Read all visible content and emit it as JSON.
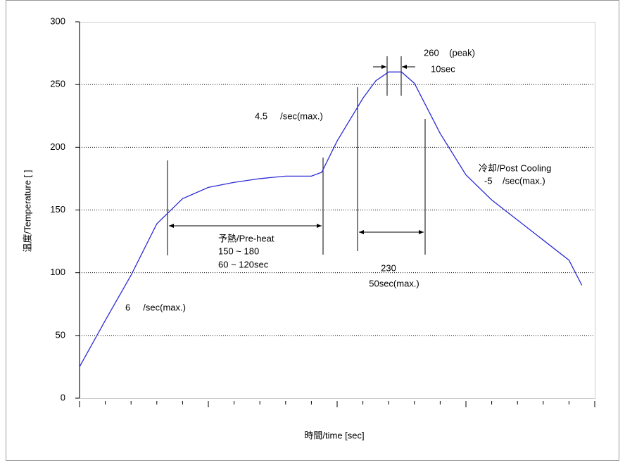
{
  "chart_data": {
    "type": "line",
    "y_label": "温度/Temperature [   ]",
    "x_label": "時間/time [sec]",
    "x": [
      0,
      1,
      2,
      3,
      4,
      5,
      6,
      7,
      8,
      9,
      9.4,
      10,
      11,
      11.5,
      12,
      12.5,
      13,
      14,
      15,
      16,
      17,
      18,
      19,
      19.5
    ],
    "series": [
      {
        "color": "#2b2bd6",
        "values": [
          25,
          62,
          98,
          139,
          159,
          168,
          172,
          175,
          177,
          177,
          180,
          205,
          239,
          253,
          260,
          260,
          251,
          211,
          178,
          158,
          142,
          126,
          110,
          90
        ]
      }
    ],
    "xlim": [
      0,
      20
    ],
    "xticks": [
      0,
      1,
      2,
      3,
      4,
      5,
      6,
      7,
      8,
      9,
      10,
      11,
      12,
      13,
      14,
      15,
      16,
      17,
      18,
      19,
      20
    ],
    "ylim": [
      0,
      300
    ],
    "yticks": [
      0,
      50,
      100,
      150,
      200,
      250,
      300
    ],
    "grid": true,
    "annotations": [
      "260    (peak)",
      "10sec",
      "4.5     /sec(max.)",
      "冷却/Post Cooling",
      "-5    /sec(max.)",
      "予熱/Pre-heat",
      "150 ~ 180",
      "60 ~ 120sec",
      "230",
      "50sec(max.)",
      "6     /sec(max.)"
    ]
  }
}
